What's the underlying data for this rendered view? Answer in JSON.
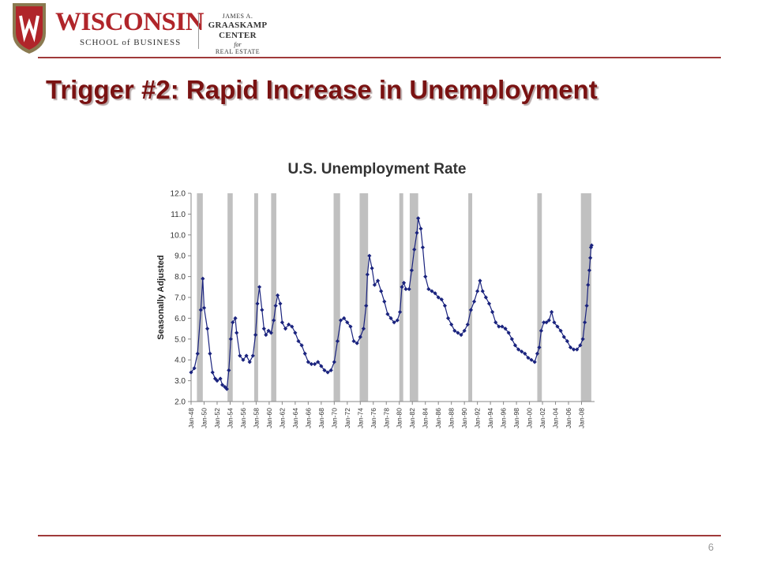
{
  "header": {
    "logo_main": "WISCONSIN",
    "logo_sub": "SCHOOL of BUSINESS",
    "center_line1": "JAMES A.",
    "center_line2": "GRAASKAMP CENTER",
    "center_line3": "for",
    "center_line4": "REAL ESTATE"
  },
  "slide": {
    "title": "Trigger #2:  Rapid Increase in Unemployment",
    "page_number": "6"
  },
  "colors": {
    "accent_rule": "#a03a3a",
    "title": "#7a1212",
    "series": "#1a237e",
    "recession_band": "#c0c0c0"
  },
  "chart_data": {
    "type": "line",
    "title": "U.S. Unemployment Rate",
    "ylabel": "Seasonally Adjusted",
    "xlabel": "",
    "ylim": [
      2.0,
      12.0
    ],
    "yticks": [
      "2.0",
      "3.0",
      "4.0",
      "5.0",
      "6.0",
      "7.0",
      "8.0",
      "9.0",
      "10.0",
      "11.0",
      "12.0"
    ],
    "xlim": [
      1948.0,
      2010.0
    ],
    "xtick_labels": [
      "Jan-48",
      "Jan-50",
      "Jan-52",
      "Jan-54",
      "Jan-56",
      "Jan-58",
      "Jan-60",
      "Jan-62",
      "Jan-64",
      "Jan-66",
      "Jan-68",
      "Jan-70",
      "Jan-72",
      "Jan-74",
      "Jan-76",
      "Jan-78",
      "Jan-80",
      "Jan-82",
      "Jan-84",
      "Jan-86",
      "Jan-88",
      "Jan-90",
      "Jan-92",
      "Jan-94",
      "Jan-96",
      "Jan-98",
      "Jan-00",
      "Jan-02",
      "Jan-04",
      "Jan-06",
      "Jan-08"
    ],
    "grid": false,
    "legend": "none",
    "marker": "diamond",
    "recessions": [
      [
        1948.9,
        1949.8
      ],
      [
        1953.6,
        1954.4
      ],
      [
        1957.7,
        1958.3
      ],
      [
        1960.3,
        1961.1
      ],
      [
        1969.9,
        1970.9
      ],
      [
        1973.9,
        1975.2
      ],
      [
        1980.0,
        1980.6
      ],
      [
        1981.6,
        1982.9
      ],
      [
        1990.6,
        1991.2
      ],
      [
        2001.2,
        2001.9
      ],
      [
        2007.9,
        2009.5
      ]
    ],
    "series": [
      {
        "values": [
          [
            1948.0,
            3.4
          ],
          [
            1948.5,
            3.6
          ],
          [
            1949.0,
            4.3
          ],
          [
            1949.5,
            6.4
          ],
          [
            1949.8,
            7.9
          ],
          [
            1950.0,
            6.5
          ],
          [
            1950.5,
            5.5
          ],
          [
            1950.9,
            4.3
          ],
          [
            1951.3,
            3.4
          ],
          [
            1951.7,
            3.1
          ],
          [
            1952.0,
            3.0
          ],
          [
            1952.5,
            3.1
          ],
          [
            1952.8,
            2.8
          ],
          [
            1953.2,
            2.7
          ],
          [
            1953.5,
            2.6
          ],
          [
            1953.8,
            3.5
          ],
          [
            1954.1,
            5.0
          ],
          [
            1954.4,
            5.8
          ],
          [
            1954.8,
            6.0
          ],
          [
            1955.0,
            5.3
          ],
          [
            1955.5,
            4.2
          ],
          [
            1956.0,
            4.0
          ],
          [
            1956.5,
            4.2
          ],
          [
            1957.0,
            3.9
          ],
          [
            1957.5,
            4.2
          ],
          [
            1957.9,
            5.2
          ],
          [
            1958.2,
            6.7
          ],
          [
            1958.5,
            7.5
          ],
          [
            1958.9,
            6.4
          ],
          [
            1959.2,
            5.5
          ],
          [
            1959.5,
            5.2
          ],
          [
            1959.9,
            5.4
          ],
          [
            1960.3,
            5.3
          ],
          [
            1960.7,
            5.9
          ],
          [
            1961.0,
            6.6
          ],
          [
            1961.3,
            7.1
          ],
          [
            1961.7,
            6.7
          ],
          [
            1962.0,
            5.8
          ],
          [
            1962.5,
            5.5
          ],
          [
            1963.0,
            5.7
          ],
          [
            1963.5,
            5.6
          ],
          [
            1964.0,
            5.3
          ],
          [
            1964.5,
            4.9
          ],
          [
            1965.0,
            4.7
          ],
          [
            1965.5,
            4.3
          ],
          [
            1966.0,
            3.9
          ],
          [
            1966.5,
            3.8
          ],
          [
            1967.0,
            3.8
          ],
          [
            1967.5,
            3.9
          ],
          [
            1968.0,
            3.7
          ],
          [
            1968.5,
            3.5
          ],
          [
            1969.0,
            3.4
          ],
          [
            1969.5,
            3.5
          ],
          [
            1970.0,
            3.9
          ],
          [
            1970.5,
            4.9
          ],
          [
            1971.0,
            5.9
          ],
          [
            1971.5,
            6.0
          ],
          [
            1972.0,
            5.8
          ],
          [
            1972.5,
            5.6
          ],
          [
            1973.0,
            4.9
          ],
          [
            1973.5,
            4.8
          ],
          [
            1974.0,
            5.1
          ],
          [
            1974.5,
            5.5
          ],
          [
            1974.9,
            6.6
          ],
          [
            1975.1,
            8.1
          ],
          [
            1975.4,
            9.0
          ],
          [
            1975.8,
            8.4
          ],
          [
            1976.2,
            7.6
          ],
          [
            1976.7,
            7.8
          ],
          [
            1977.2,
            7.3
          ],
          [
            1977.7,
            6.8
          ],
          [
            1978.2,
            6.2
          ],
          [
            1978.7,
            6.0
          ],
          [
            1979.2,
            5.8
          ],
          [
            1979.7,
            5.9
          ],
          [
            1980.1,
            6.3
          ],
          [
            1980.4,
            7.5
          ],
          [
            1980.7,
            7.7
          ],
          [
            1981.0,
            7.4
          ],
          [
            1981.5,
            7.4
          ],
          [
            1981.9,
            8.3
          ],
          [
            1982.3,
            9.3
          ],
          [
            1982.7,
            10.1
          ],
          [
            1982.9,
            10.8
          ],
          [
            1983.3,
            10.3
          ],
          [
            1983.6,
            9.4
          ],
          [
            1984.0,
            8.0
          ],
          [
            1984.5,
            7.4
          ],
          [
            1985.0,
            7.3
          ],
          [
            1985.5,
            7.2
          ],
          [
            1986.0,
            7.0
          ],
          [
            1986.5,
            6.9
          ],
          [
            1987.0,
            6.6
          ],
          [
            1987.5,
            6.0
          ],
          [
            1988.0,
            5.7
          ],
          [
            1988.5,
            5.4
          ],
          [
            1989.0,
            5.3
          ],
          [
            1989.5,
            5.2
          ],
          [
            1990.0,
            5.4
          ],
          [
            1990.5,
            5.7
          ],
          [
            1991.0,
            6.4
          ],
          [
            1991.5,
            6.8
          ],
          [
            1992.0,
            7.3
          ],
          [
            1992.4,
            7.8
          ],
          [
            1992.8,
            7.3
          ],
          [
            1993.3,
            7.0
          ],
          [
            1993.8,
            6.7
          ],
          [
            1994.3,
            6.3
          ],
          [
            1994.8,
            5.8
          ],
          [
            1995.3,
            5.6
          ],
          [
            1995.8,
            5.6
          ],
          [
            1996.3,
            5.5
          ],
          [
            1996.8,
            5.3
          ],
          [
            1997.3,
            5.0
          ],
          [
            1997.8,
            4.7
          ],
          [
            1998.3,
            4.5
          ],
          [
            1998.8,
            4.4
          ],
          [
            1999.3,
            4.3
          ],
          [
            1999.8,
            4.1
          ],
          [
            2000.3,
            4.0
          ],
          [
            2000.8,
            3.9
          ],
          [
            2001.2,
            4.3
          ],
          [
            2001.5,
            4.6
          ],
          [
            2001.8,
            5.4
          ],
          [
            2002.2,
            5.8
          ],
          [
            2002.6,
            5.8
          ],
          [
            2003.0,
            5.9
          ],
          [
            2003.4,
            6.3
          ],
          [
            2003.8,
            5.8
          ],
          [
            2004.3,
            5.6
          ],
          [
            2004.8,
            5.4
          ],
          [
            2005.3,
            5.1
          ],
          [
            2005.8,
            4.9
          ],
          [
            2006.3,
            4.6
          ],
          [
            2006.8,
            4.5
          ],
          [
            2007.3,
            4.5
          ],
          [
            2007.8,
            4.7
          ],
          [
            2008.2,
            5.0
          ],
          [
            2008.5,
            5.8
          ],
          [
            2008.8,
            6.6
          ],
          [
            2009.0,
            7.6
          ],
          [
            2009.2,
            8.3
          ],
          [
            2009.35,
            8.9
          ],
          [
            2009.45,
            9.4
          ],
          [
            2009.55,
            9.5
          ]
        ]
      }
    ]
  }
}
